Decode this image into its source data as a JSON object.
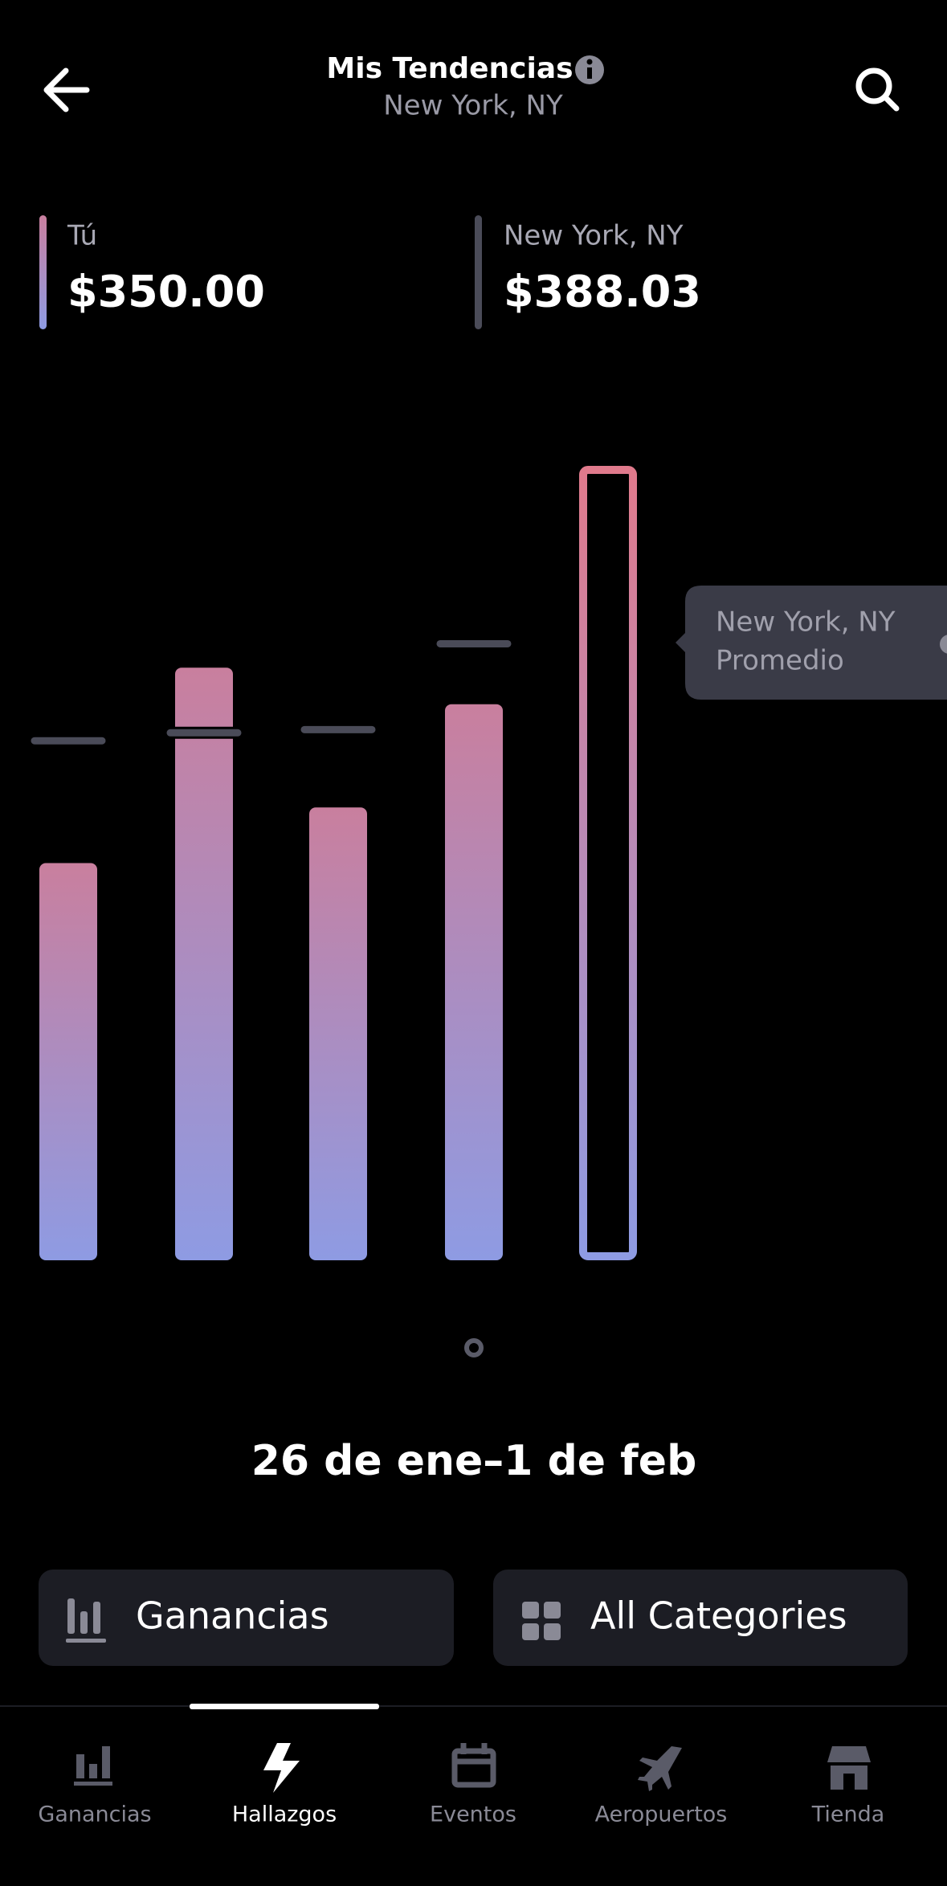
{
  "header": {
    "title": "Mis Tendencias",
    "subtitle": "New York, NY"
  },
  "summary": [
    {
      "label": "Tú",
      "value": "$350.00"
    },
    {
      "label": "New York, NY",
      "value": "$388.03"
    }
  ],
  "chart_data": {
    "type": "bar",
    "values": [
      250,
      373,
      285,
      350,
      500
    ],
    "averages": [
      327,
      332,
      334,
      388.03,
      null
    ],
    "ylim": [
      0,
      500
    ],
    "highlight": 4,
    "tooltip": [
      "New York, NY",
      "Promedio"
    ]
  },
  "date_range": "26 de ene–1 de feb",
  "filters": [
    "Ganancias",
    "All Categories"
  ],
  "nav": [
    "Ganancias",
    "Hallazgos",
    "Eventos",
    "Aeropuertos",
    "Tienda"
  ],
  "nav_active": 1
}
